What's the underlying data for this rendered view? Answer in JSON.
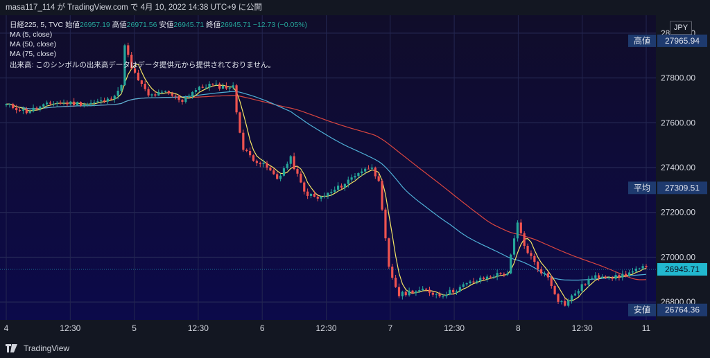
{
  "header": {
    "user": "masa117_114",
    "on": "が",
    "site": "TradingView.com",
    "sep": "で",
    "datetime": "4月 10, 2022 14:38 UTC+9",
    "suffix": "に公開"
  },
  "legend": {
    "symbol": "日経225, 5, TVC",
    "open_label": "始値",
    "open": "26957.19",
    "high_label": "高値",
    "high": "26971.56",
    "low_label": "安値",
    "low": "26945.71",
    "close_label": "終値",
    "close": "26945.71",
    "change": "−12.73 (−0.05%)",
    "ma5": "MA (5, close)",
    "ma50": "MA (50, close)",
    "ma75": "MA (75, close)",
    "volume_note": "出来高: このシンボルの出来高データはデータ提供元から提供されておりません。"
  },
  "currency_button": "JPY",
  "footer": {
    "brand": "TradingView"
  },
  "colors": {
    "background": "#0e0c33",
    "up": "#26a69a",
    "down": "#ef5350",
    "ma5": "#f5e663",
    "ma50": "#4fb0d6",
    "ma75": "#d9453f",
    "last_price_bg": "#22b8cf",
    "label_bg": "#1e3a6e"
  },
  "chart_data": {
    "type": "candlestick",
    "ylim": [
      26720,
      28080
    ],
    "yticks": [
      "28000.00",
      "27800.00",
      "27600.00",
      "27400.00",
      "27200.00",
      "27000.00",
      "26800.00"
    ],
    "ytick_values": [
      28000,
      27800,
      27600,
      27400,
      27200,
      27000,
      26800
    ],
    "xticks": [
      "4",
      "12:30",
      "5",
      "12:30",
      "6",
      "12:30",
      "7",
      "12:30",
      "8",
      "12:30",
      "11"
    ],
    "price_labels": [
      {
        "label": "高値",
        "value": "27965.94",
        "price": 27965.94,
        "style": "dark"
      },
      {
        "label": "平均",
        "value": "27309.51",
        "price": 27309.51,
        "style": "dark"
      },
      {
        "label": "",
        "value": "26945.71",
        "price": 26945.71,
        "style": "last"
      },
      {
        "label": "安値",
        "value": "26764.36",
        "price": 26764.36,
        "style": "dark"
      }
    ],
    "close_path_anchors": [
      [
        0,
        27680
      ],
      [
        6,
        27650
      ],
      [
        14,
        27690
      ],
      [
        24,
        27685
      ],
      [
        30,
        27700
      ],
      [
        34,
        27760
      ],
      [
        35,
        27955
      ],
      [
        37,
        27840
      ],
      [
        42,
        27720
      ],
      [
        47,
        27735
      ],
      [
        52,
        27700
      ],
      [
        55,
        27740
      ],
      [
        60,
        27770
      ],
      [
        64,
        27760
      ],
      [
        67,
        27760
      ],
      [
        68,
        27650
      ],
      [
        70,
        27480
      ],
      [
        73,
        27440
      ],
      [
        77,
        27400
      ],
      [
        80,
        27350
      ],
      [
        84,
        27440
      ],
      [
        88,
        27290
      ],
      [
        92,
        27260
      ],
      [
        96,
        27290
      ],
      [
        100,
        27330
      ],
      [
        104,
        27380
      ],
      [
        106,
        27390
      ],
      [
        108,
        27410
      ],
      [
        110,
        27330
      ],
      [
        113,
        26950
      ],
      [
        116,
        26830
      ],
      [
        120,
        26850
      ],
      [
        124,
        26850
      ],
      [
        128,
        26830
      ],
      [
        132,
        26850
      ],
      [
        136,
        26880
      ],
      [
        140,
        26900
      ],
      [
        144,
        26920
      ],
      [
        148,
        26930
      ],
      [
        151,
        27150
      ],
      [
        153,
        27050
      ],
      [
        157,
        26950
      ],
      [
        160,
        26910
      ],
      [
        163,
        26810
      ],
      [
        165,
        26790
      ],
      [
        168,
        26840
      ],
      [
        172,
        26900
      ],
      [
        176,
        26920
      ],
      [
        180,
        26910
      ],
      [
        184,
        26930
      ],
      [
        188,
        26950
      ]
    ]
  }
}
